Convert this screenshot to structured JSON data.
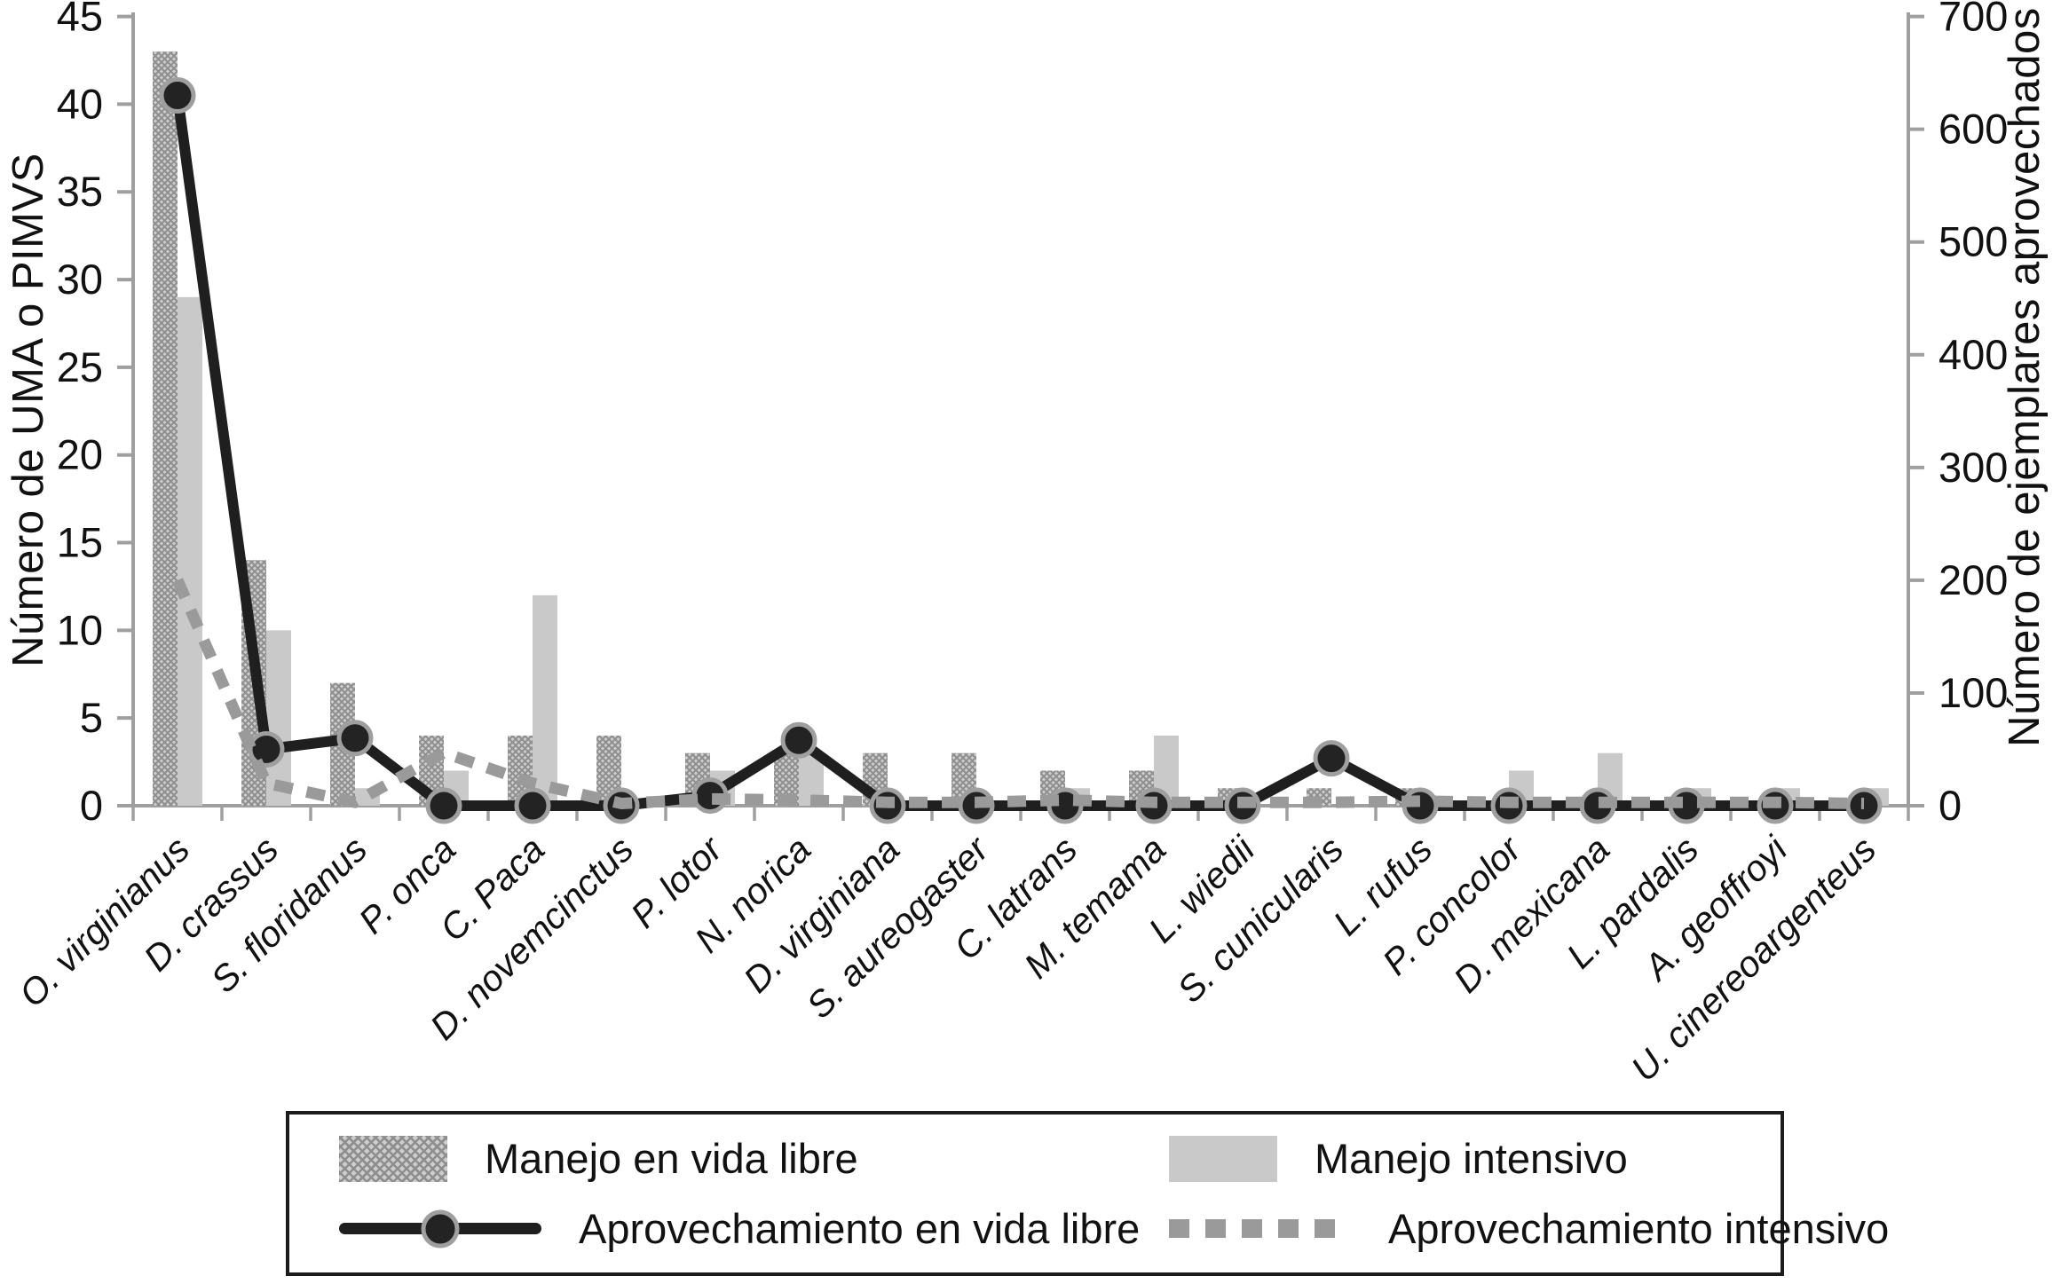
{
  "chart_data": {
    "type": "bar+line combo",
    "categories": [
      "O. virginianus",
      "D. crassus",
      "S. floridanus",
      "P. onca",
      "C. Paca",
      "D. novemcinctus",
      "P. lotor",
      "N. norica",
      "D. virginiana",
      "S. aureogaster",
      "C. latrans",
      "M. temama",
      "L. wiedii",
      "S. cunicularis",
      "L. rufus",
      "P. concolor",
      "D. mexicana",
      "L. pardalis",
      "A. geoffroyi",
      "U. cinereoargenteus"
    ],
    "series": [
      {
        "name": "Manejo en vida libre",
        "type": "bar",
        "style": "hatched",
        "axis": "left",
        "values": [
          43,
          14,
          7,
          4,
          4,
          4,
          3,
          3,
          3,
          3,
          2,
          2,
          1,
          1,
          1,
          0,
          0,
          0,
          0,
          0
        ]
      },
      {
        "name": "Manejo intensivo",
        "type": "bar",
        "style": "solid",
        "axis": "left",
        "values": [
          29,
          10,
          1,
          2,
          12,
          0,
          2,
          3,
          0,
          0,
          1,
          4,
          0,
          0,
          0,
          2,
          3,
          1,
          1,
          1
        ]
      },
      {
        "name": "Aprovechamiento en vida libre",
        "type": "line",
        "style": "solid-with-markers",
        "axis": "right",
        "values": [
          630,
          50,
          60,
          0,
          0,
          0,
          9,
          58,
          0,
          0,
          0,
          0,
          0,
          42,
          0,
          0,
          0,
          0,
          0,
          0
        ]
      },
      {
        "name": "Aprovechamiento intensivo",
        "type": "line",
        "style": "dashed",
        "axis": "right",
        "values": [
          200,
          20,
          3,
          47,
          20,
          2,
          6,
          5,
          3,
          3,
          5,
          3,
          3,
          3,
          4,
          3,
          3,
          3,
          3,
          2
        ]
      }
    ],
    "left_axis": {
      "label": "Número de UMA o PIMVS",
      "min": 0,
      "max": 45,
      "step": 5,
      "ticks": [
        0,
        5,
        10,
        15,
        20,
        25,
        30,
        35,
        40,
        45
      ]
    },
    "right_axis": {
      "label": "Número de ejemplares aprovechados",
      "min": 0,
      "max": 700,
      "step": 100,
      "ticks": [
        0,
        100,
        200,
        300,
        400,
        500,
        600,
        700
      ]
    },
    "x_axis": {
      "tick_label_style": "italic",
      "tick_label_rotation_deg": -45
    },
    "legend": {
      "position": "bottom",
      "columns": 2,
      "entries": [
        "Manejo en vida libre",
        "Manejo intensivo",
        "Aprovechamiento en vida libre",
        "Aprovechamiento intensivo"
      ]
    },
    "grid": "off",
    "colors": {
      "hatched_bar_base": "#cdcdcd",
      "hatched_bar_lines": "#8e8e8e",
      "solid_bar": "#c9c9c9",
      "black_line": "#1f1f1f",
      "marker_fill": "#232323",
      "marker_ring": "#9f9f9f",
      "dashed_line": "#9a9a9a",
      "axis": "#9f9f9f",
      "text": "#111111"
    }
  }
}
